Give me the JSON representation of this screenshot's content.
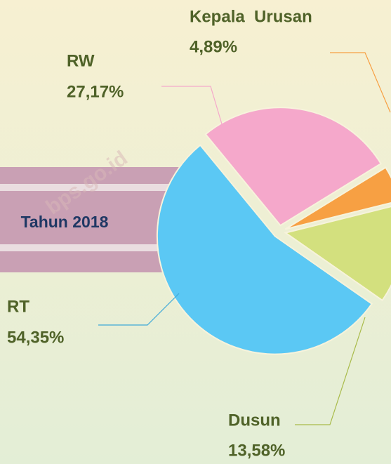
{
  "chart_data": {
    "type": "pie",
    "subtitle": "Tahun 2018",
    "watermark": "bps.go.id",
    "categories": [
      "RW",
      "Kepala  Urusan",
      "Dusun",
      "RT"
    ],
    "values": [
      27.17,
      4.89,
      13.58,
      54.35
    ],
    "value_labels": [
      "27,17%",
      "4,89%",
      "13,58%",
      "54,35%"
    ],
    "colors": [
      "#f5a8cb",
      "#f7a043",
      "#d3e07e",
      "#5bc8f4"
    ]
  }
}
